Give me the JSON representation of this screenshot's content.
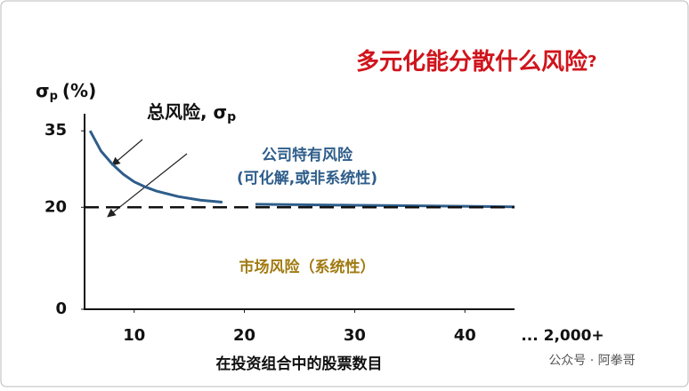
{
  "chart_data": {
    "type": "line",
    "title": "多元化能分散什么风险",
    "title_mark": "?",
    "y_label": {
      "symbol": "σ",
      "sub": "p",
      "unit": "(%)"
    },
    "x_label": "在投资组合中的股票数目",
    "x_extra_label": "... 2,000+",
    "xlim": [
      5.5,
      44.5
    ],
    "ylim": [
      0,
      38
    ],
    "xticks": [
      10,
      20,
      30,
      40
    ],
    "yticks": [
      0,
      20,
      35
    ],
    "series": [
      {
        "name": "总风险",
        "color": "#2e5d8a",
        "dashed": false,
        "x": [
          6,
          7,
          8,
          9,
          10,
          11,
          12,
          14,
          16,
          18,
          19.5,
          21,
          25,
          30,
          35,
          40,
          44.5
        ],
        "values": [
          35,
          31,
          28.5,
          26.5,
          25,
          24,
          23.2,
          22.1,
          21.4,
          21,
          null,
          20.6,
          20.5,
          20.4,
          20.3,
          20.2,
          20.1
        ]
      },
      {
        "name": "市场风险",
        "color": "#111111",
        "dashed": true,
        "x": [
          5.5,
          44.5
        ],
        "values": [
          20,
          20
        ]
      }
    ],
    "annotations": {
      "total": {
        "text": "总风险, σ",
        "sub": "p"
      },
      "firm": "公司特有风险",
      "firm_note": "(可化解,或非系统性)",
      "market": "市场风险（系统性）"
    },
    "watermark": "公众号 · 阿拳哥"
  }
}
